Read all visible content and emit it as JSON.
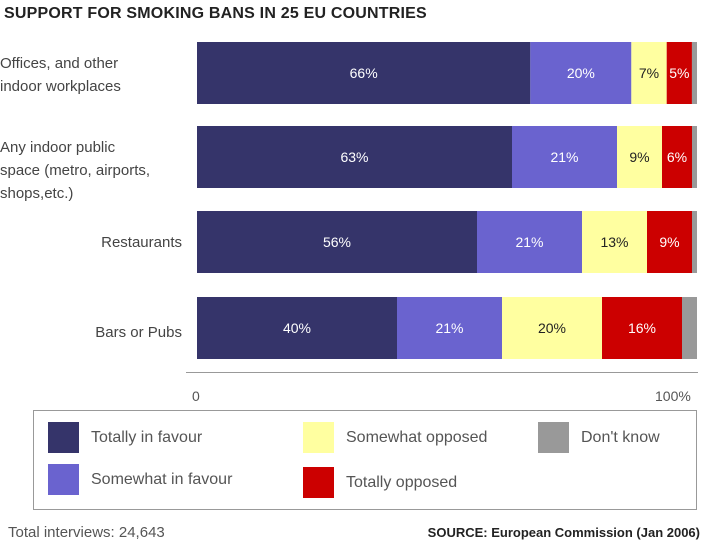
{
  "chart_data": {
    "type": "bar",
    "orientation": "horizontal",
    "stacked": true,
    "title": "SUPPORT FOR SMOKING BANS IN 25 EU COUNTRIES",
    "categories": [
      [
        "Offices, and other",
        "indoor workplaces"
      ],
      [
        "Any indoor public",
        "space (metro, airports,",
        "shops,etc.)"
      ],
      [
        "Restaurants"
      ],
      [
        "Bars or Pubs"
      ]
    ],
    "series": [
      {
        "name": "Totally in favour",
        "color": "#35346a",
        "label_color": "#ffffff",
        "values": [
          66,
          63,
          56,
          40
        ]
      },
      {
        "name": "Somewhat in favour",
        "color": "#6a63cf",
        "label_color": "#ffffff",
        "values": [
          20,
          21,
          21,
          21
        ]
      },
      {
        "name": "Somewhat opposed",
        "color": "#ffffa0",
        "label_color": "#222222",
        "values": [
          7,
          9,
          13,
          20
        ]
      },
      {
        "name": "Totally opposed",
        "color": "#cc0000",
        "label_color": "#ffffff",
        "values": [
          5,
          6,
          9,
          16
        ]
      },
      {
        "name": "Don't know",
        "color": "#999999",
        "label_color": "#ffffff",
        "values": [
          1,
          1,
          1,
          3
        ]
      }
    ],
    "labels_shown": [
      [
        true,
        true,
        true,
        true,
        false
      ],
      [
        true,
        true,
        true,
        true,
        false
      ],
      [
        true,
        true,
        true,
        true,
        false
      ],
      [
        true,
        true,
        true,
        true,
        false
      ]
    ],
    "xlim": [
      0,
      100
    ],
    "x_tick_labels": [
      "0",
      "100%"
    ],
    "legend_position": "bottom"
  },
  "footer": {
    "total_interviews": "Total interviews: 24,643",
    "source": "SOURCE: European Commission (Jan 2006)"
  }
}
